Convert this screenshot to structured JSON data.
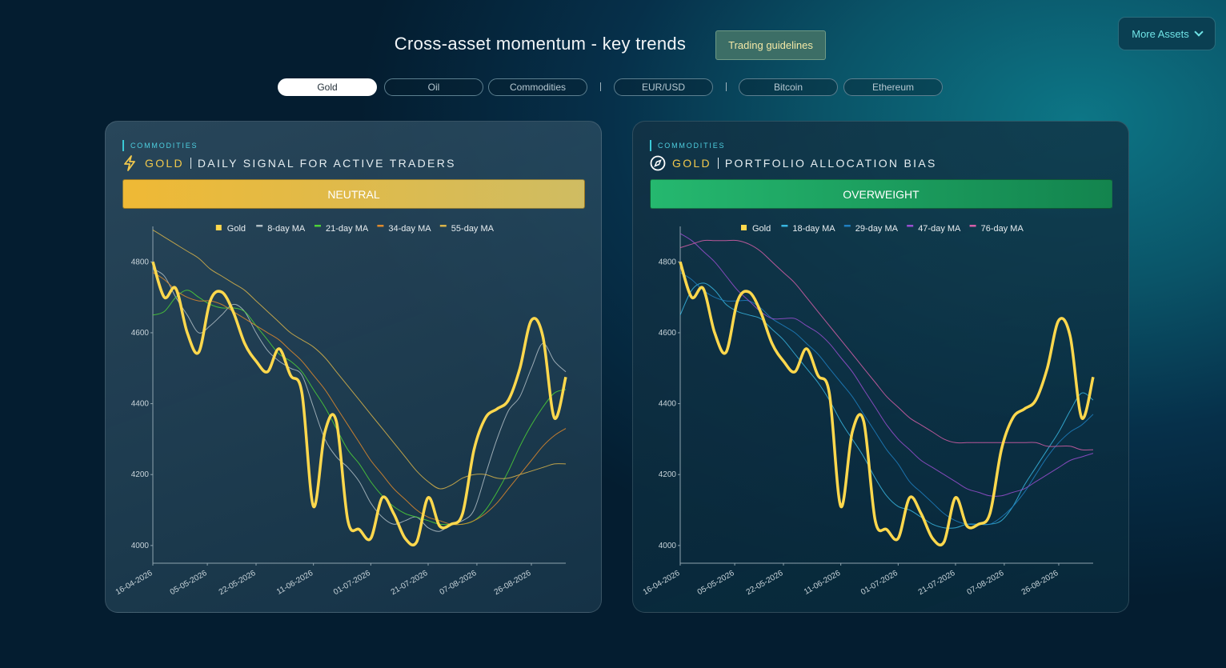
{
  "header": {
    "title": "Cross-asset momentum - key trends",
    "guidelines_button": "Trading guidelines",
    "more_assets_button": "More Assets"
  },
  "tabs": [
    "Gold",
    "Oil",
    "Commodities",
    "EUR/USD",
    "Bitcoin",
    "Ethereum"
  ],
  "panels": [
    {
      "category": "COMMODITIES",
      "asset": "GOLD",
      "heading": "DAILY SIGNAL FOR ACTIVE TRADERS",
      "signal": "NEUTRAL"
    },
    {
      "category": "COMMODITIES",
      "asset": "GOLD",
      "heading": "PORTFOLIO ALLOCATION BIAS",
      "signal": "OVERWEIGHT"
    }
  ],
  "chart_data": [
    {
      "type": "line",
      "legend": "top",
      "x": [
        "16-04-2026",
        "20-04-2026",
        "24-04-2026",
        "28-04-2026",
        "02-05-2026",
        "06-05-2026",
        "10-05-2026",
        "14-05-2026",
        "18-05-2026",
        "22-05-2026",
        "26-05-2026",
        "30-05-2026",
        "03-06-2026",
        "07-06-2026",
        "11-06-2026",
        "15-06-2026",
        "19-06-2026",
        "23-06-2026",
        "27-06-2026",
        "01-07-2026",
        "05-07-2026",
        "09-07-2026",
        "13-07-2026",
        "17-07-2026",
        "21-07-2026",
        "25-07-2026",
        "29-07-2026",
        "02-08-2026",
        "06-08-2026",
        "10-08-2026",
        "14-08-2026",
        "18-08-2026",
        "22-08-2026",
        "26-08-2026",
        "30-08-2026",
        "03-09-2026",
        "07-09-2026"
      ],
      "xlim": [
        "16-04-2026",
        "07-09-2026"
      ],
      "xticks": [
        "16-04-2026",
        "05-05-2026",
        "22-05-2026",
        "11-06-2026",
        "01-07-2026",
        "21-07-2026",
        "07-08-2026",
        "26-08-2026"
      ],
      "ylim": [
        3950,
        4900
      ],
      "yticks": [
        4000,
        4200,
        4400,
        4600,
        4800
      ],
      "series": [
        {
          "name": "Gold",
          "color": "#ffd84d",
          "values": [
            4800,
            4700,
            4725,
            4600,
            4545,
            4690,
            4715,
            4660,
            4570,
            4520,
            4490,
            4555,
            4480,
            4430,
            4110,
            4320,
            4350,
            4070,
            4045,
            4020,
            4135,
            4090,
            4020,
            4010,
            4135,
            4055,
            4060,
            4090,
            4270,
            4360,
            4385,
            4410,
            4500,
            4635,
            4590,
            4360,
            4475
          ]
        },
        {
          "name": "8-day MA",
          "color": "#b0bec5",
          "values": [
            4780,
            4760,
            4700,
            4650,
            4600,
            4620,
            4650,
            4680,
            4660,
            4600,
            4550,
            4520,
            4500,
            4480,
            4390,
            4300,
            4250,
            4220,
            4180,
            4120,
            4080,
            4060,
            4070,
            4080,
            4050,
            4040,
            4060,
            4070,
            4100,
            4200,
            4300,
            4380,
            4420,
            4500,
            4570,
            4520,
            4490
          ]
        },
        {
          "name": "21-day MA",
          "color": "#4cd137",
          "values": [
            4650,
            4660,
            4700,
            4720,
            4700,
            4680,
            4670,
            4670,
            4660,
            4620,
            4580,
            4540,
            4520,
            4490,
            4440,
            4390,
            4330,
            4270,
            4230,
            4180,
            4140,
            4110,
            4090,
            4080,
            4070,
            4060,
            4060,
            4060,
            4070,
            4100,
            4150,
            4210,
            4280,
            4340,
            4390,
            4430,
            4440
          ]
        },
        {
          "name": "34-day MA",
          "color": "#e08a2c",
          "values": [
            4770,
            4750,
            4720,
            4700,
            4690,
            4690,
            4680,
            4660,
            4640,
            4620,
            4600,
            4580,
            4550,
            4520,
            4480,
            4440,
            4390,
            4340,
            4290,
            4240,
            4200,
            4160,
            4130,
            4100,
            4080,
            4070,
            4060,
            4060,
            4070,
            4090,
            4120,
            4160,
            4200,
            4240,
            4280,
            4310,
            4330
          ]
        },
        {
          "name": "55-day MA",
          "color": "#d9b44a",
          "values": [
            4890,
            4870,
            4850,
            4830,
            4810,
            4780,
            4760,
            4740,
            4720,
            4690,
            4660,
            4630,
            4600,
            4580,
            4560,
            4530,
            4490,
            4450,
            4410,
            4370,
            4330,
            4290,
            4250,
            4210,
            4180,
            4160,
            4170,
            4190,
            4200,
            4200,
            4190,
            4190,
            4200,
            4210,
            4220,
            4230,
            4230
          ]
        }
      ]
    },
    {
      "type": "line",
      "legend": "top",
      "x": [
        "16-04-2026",
        "20-04-2026",
        "24-04-2026",
        "28-04-2026",
        "02-05-2026",
        "06-05-2026",
        "10-05-2026",
        "14-05-2026",
        "18-05-2026",
        "22-05-2026",
        "26-05-2026",
        "30-05-2026",
        "03-06-2026",
        "07-06-2026",
        "11-06-2026",
        "15-06-2026",
        "19-06-2026",
        "23-06-2026",
        "27-06-2026",
        "01-07-2026",
        "05-07-2026",
        "09-07-2026",
        "13-07-2026",
        "17-07-2026",
        "21-07-2026",
        "25-07-2026",
        "29-07-2026",
        "02-08-2026",
        "06-08-2026",
        "10-08-2026",
        "14-08-2026",
        "18-08-2026",
        "22-08-2026",
        "26-08-2026",
        "30-08-2026",
        "03-09-2026",
        "07-09-2026"
      ],
      "xlim": [
        "16-04-2026",
        "07-09-2026"
      ],
      "xticks": [
        "16-04-2026",
        "05-05-2026",
        "22-05-2026",
        "11-06-2026",
        "01-07-2026",
        "21-07-2026",
        "07-08-2026",
        "26-08-2026"
      ],
      "ylim": [
        3950,
        4900
      ],
      "yticks": [
        4000,
        4200,
        4400,
        4600,
        4800
      ],
      "series": [
        {
          "name": "Gold",
          "color": "#ffd84d",
          "values": [
            4800,
            4700,
            4725,
            4600,
            4545,
            4690,
            4715,
            4660,
            4570,
            4520,
            4490,
            4555,
            4480,
            4430,
            4110,
            4320,
            4350,
            4070,
            4045,
            4020,
            4135,
            4090,
            4020,
            4010,
            4135,
            4055,
            4060,
            4090,
            4270,
            4360,
            4385,
            4410,
            4500,
            4635,
            4590,
            4360,
            4475
          ]
        },
        {
          "name": "18-day MA",
          "color": "#38b6e0",
          "values": [
            4650,
            4720,
            4740,
            4720,
            4680,
            4660,
            4650,
            4640,
            4610,
            4580,
            4540,
            4500,
            4460,
            4410,
            4350,
            4300,
            4250,
            4190,
            4140,
            4110,
            4100,
            4080,
            4060,
            4050,
            4050,
            4060,
            4060,
            4060,
            4070,
            4110,
            4170,
            4220,
            4270,
            4320,
            4380,
            4430,
            4410
          ]
        },
        {
          "name": "29-day MA",
          "color": "#1f7fc0",
          "values": [
            4770,
            4750,
            4720,
            4700,
            4690,
            4690,
            4690,
            4670,
            4640,
            4620,
            4600,
            4570,
            4540,
            4500,
            4460,
            4420,
            4370,
            4320,
            4270,
            4230,
            4180,
            4150,
            4120,
            4090,
            4070,
            4060,
            4060,
            4060,
            4080,
            4110,
            4150,
            4200,
            4250,
            4290,
            4320,
            4340,
            4370
          ]
        },
        {
          "name": "47-day MA",
          "color": "#9a4fd0",
          "values": [
            4880,
            4860,
            4830,
            4800,
            4760,
            4720,
            4690,
            4660,
            4640,
            4640,
            4640,
            4620,
            4600,
            4570,
            4530,
            4490,
            4440,
            4390,
            4340,
            4300,
            4270,
            4240,
            4220,
            4200,
            4180,
            4160,
            4150,
            4140,
            4140,
            4150,
            4160,
            4180,
            4200,
            4220,
            4240,
            4250,
            4260
          ]
        },
        {
          "name": "76-day MA",
          "color": "#d65fa8",
          "values": [
            4840,
            4850,
            4860,
            4860,
            4860,
            4860,
            4850,
            4830,
            4800,
            4770,
            4740,
            4700,
            4660,
            4620,
            4580,
            4540,
            4500,
            4460,
            4420,
            4390,
            4360,
            4340,
            4320,
            4300,
            4290,
            4290,
            4290,
            4290,
            4290,
            4290,
            4290,
            4290,
            4280,
            4280,
            4280,
            4270,
            4270
          ]
        }
      ]
    }
  ]
}
